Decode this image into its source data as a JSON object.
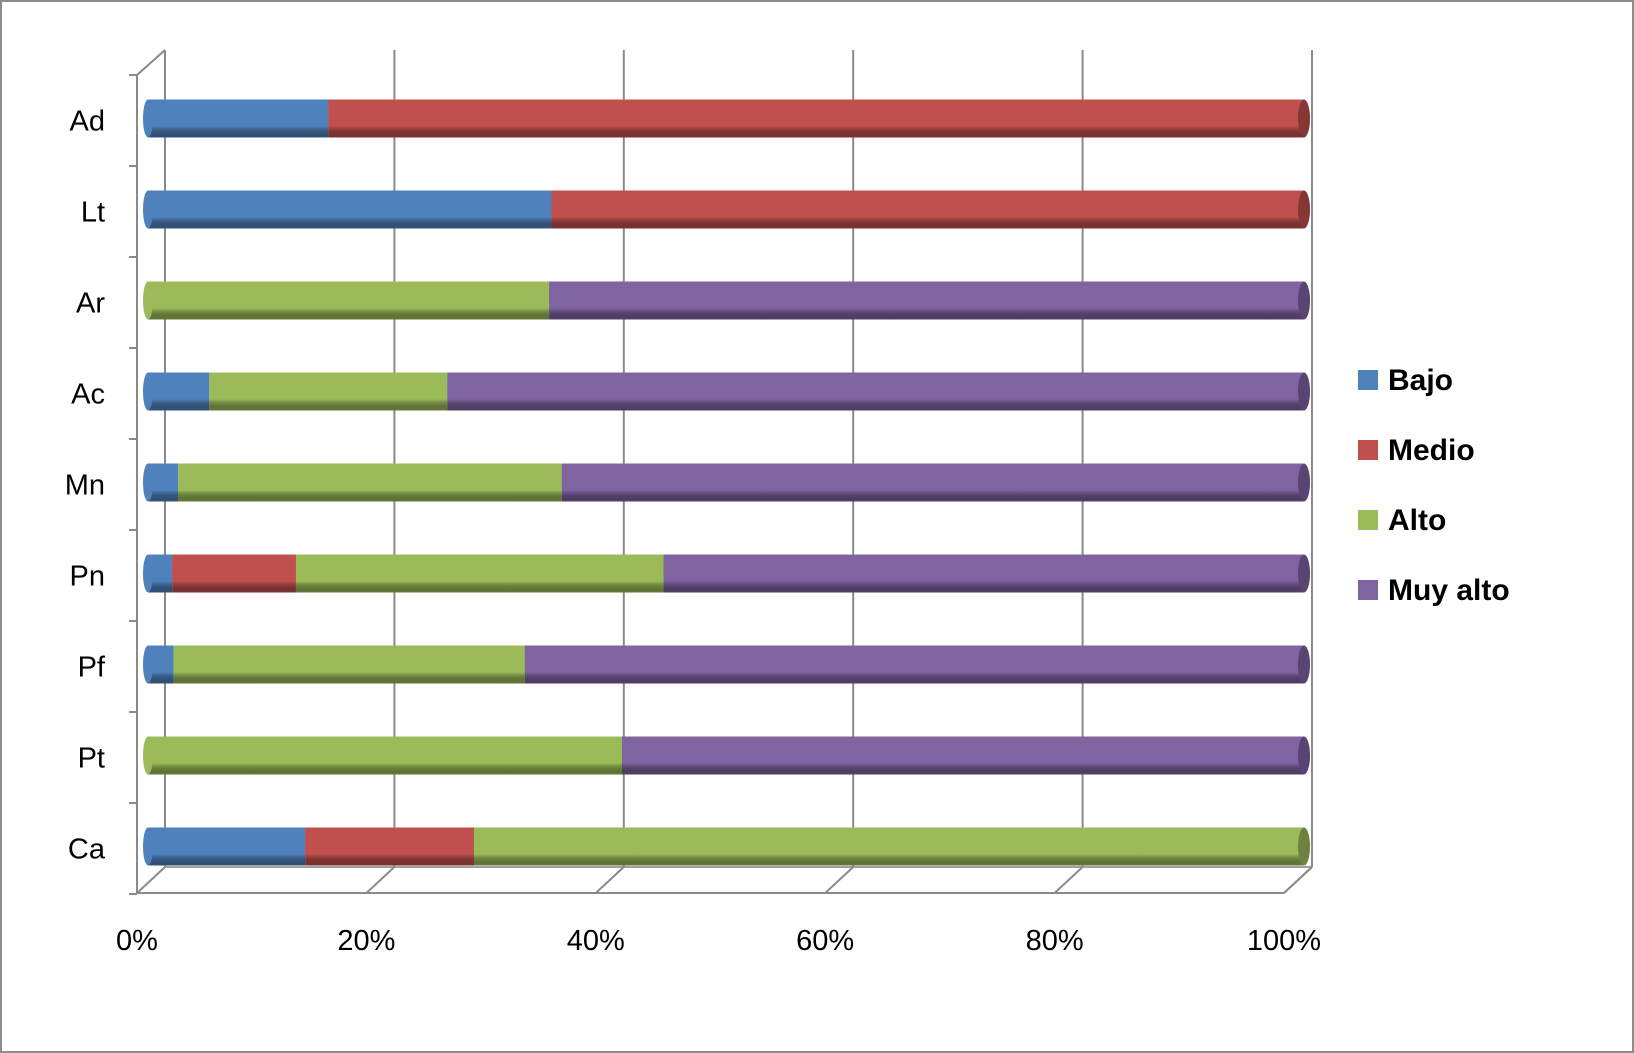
{
  "chart_data": {
    "type": "bar",
    "orientation": "horizontal",
    "stacked": "percent",
    "three_d": true,
    "categories": [
      "Ad",
      "Lt",
      "Ar",
      "Ac",
      "Mn",
      "Pn",
      "Pf",
      "Pt",
      "Ca"
    ],
    "series": [
      {
        "name": "Bajo",
        "color": "#4f81bd",
        "values": [
          15.6,
          34.9,
          0,
          5.3,
          2.6,
          2.1,
          2.2,
          0,
          13.6
        ]
      },
      {
        "name": "Medio",
        "color": "#c0504d",
        "values": [
          84.4,
          65.1,
          0,
          0,
          0,
          10.7,
          0,
          0,
          14.6
        ]
      },
      {
        "name": "Alto",
        "color": "#9bbb59",
        "values": [
          0,
          0,
          34.7,
          20.6,
          33.2,
          31.8,
          30.4,
          41.0,
          71.8
        ]
      },
      {
        "name": "Muy alto",
        "color": "#8064a2",
        "values": [
          0,
          0,
          65.3,
          74.1,
          64.2,
          55.4,
          67.4,
          59.0,
          0
        ]
      }
    ],
    "xlim": [
      0,
      100
    ],
    "x_ticks": [
      "0%",
      "20%",
      "40%",
      "60%",
      "80%",
      "100%"
    ],
    "grid": true,
    "legend_position": "right"
  }
}
